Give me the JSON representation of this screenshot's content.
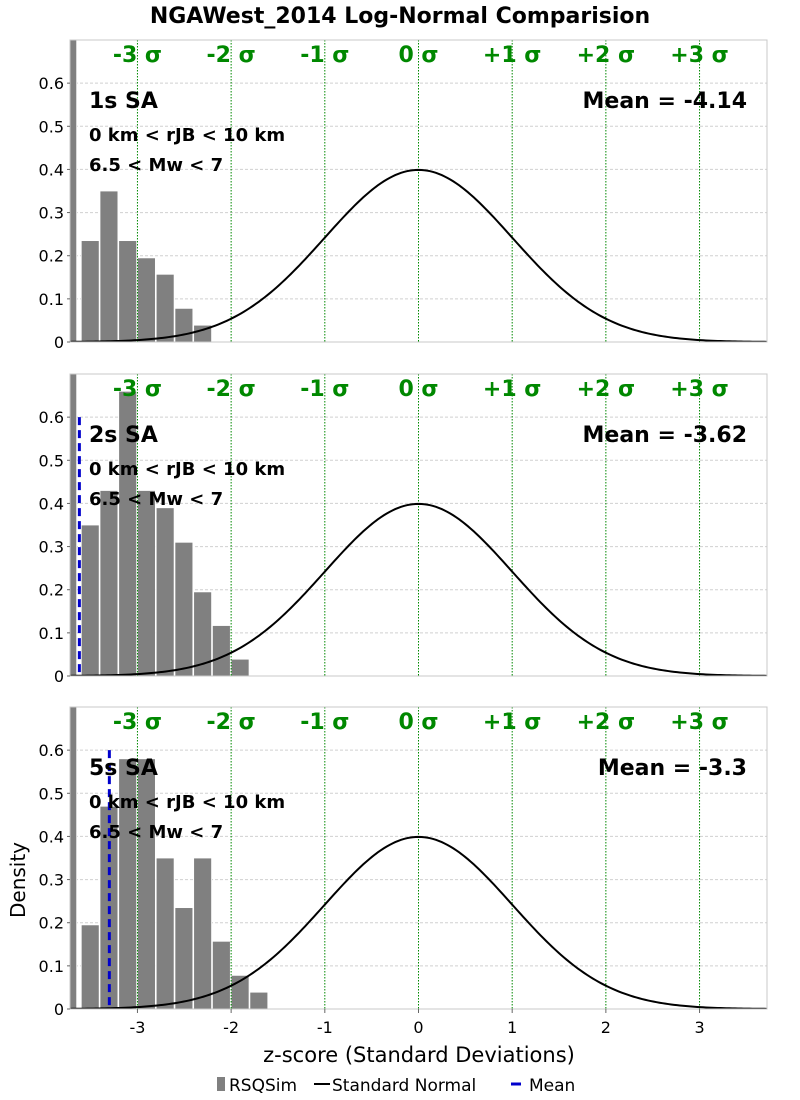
{
  "title": "NGAWest_2014 Log-Normal Comparision",
  "xlabel": "z-score (Standard Deviations)",
  "ylabel": "Density",
  "colors": {
    "bars": "#808080",
    "curve": "#000000",
    "mean": "#0000cc",
    "sigma": "#008800",
    "grid": "#d0d0d0",
    "frame": "#c8c8c8"
  },
  "legend": [
    {
      "label": "RSQSim",
      "kind": "bar"
    },
    {
      "label": "Standard Normal",
      "kind": "line"
    },
    {
      "label": "Mean",
      "kind": "dash"
    }
  ],
  "chart_data": {
    "type": "bar",
    "xlim": [
      -3.72,
      3.72
    ],
    "ylim": [
      0,
      0.7
    ],
    "xticks": [
      -3,
      -2,
      -1,
      0,
      1,
      2,
      3
    ],
    "xtick_labels": [
      "-3",
      "-2",
      "-1",
      "0",
      "1",
      "2",
      "3"
    ],
    "yticks": [
      0,
      0.1,
      0.2,
      0.3,
      0.4,
      0.5,
      0.6
    ],
    "ytick_labels": [
      "0",
      "0.1",
      "0.2",
      "0.3",
      "0.4",
      "0.5",
      "0.6"
    ],
    "sigma_lines": [
      -3,
      -2,
      -1,
      0,
      1,
      2,
      3
    ],
    "sigma_labels": [
      "-3 σ",
      "-2 σ",
      "-1 σ",
      "0 σ",
      "+1 σ",
      "+2 σ",
      "+3 σ"
    ],
    "bin_width": 0.2,
    "panels": [
      {
        "label": "1s SA",
        "range_text": "0 km < rJB < 10 km",
        "mag_text": "6.5 < Mw < 7",
        "mean_text": "Mean = -4.14",
        "mean": -4.14,
        "bins": [
          {
            "left": -3.72,
            "right": -3.64,
            "value": 0.7
          },
          {
            "left": -3.6,
            "right": -3.4,
            "value": 0.235
          },
          {
            "left": -3.4,
            "right": -3.2,
            "value": 0.35
          },
          {
            "left": -3.2,
            "right": -3.0,
            "value": 0.235
          },
          {
            "left": -3.0,
            "right": -2.8,
            "value": 0.195
          },
          {
            "left": -2.8,
            "right": -2.6,
            "value": 0.157
          },
          {
            "left": -2.6,
            "right": -2.4,
            "value": 0.078
          },
          {
            "left": -2.4,
            "right": -2.2,
            "value": 0.039
          }
        ]
      },
      {
        "label": "2s SA",
        "range_text": "0 km < rJB < 10 km",
        "mag_text": "6.5 < Mw < 7",
        "mean_text": "Mean = -3.62",
        "mean": -3.62,
        "bins": [
          {
            "left": -3.72,
            "right": -3.64,
            "value": 0.7
          },
          {
            "left": -3.6,
            "right": -3.4,
            "value": 0.35
          },
          {
            "left": -3.4,
            "right": -3.2,
            "value": 0.43
          },
          {
            "left": -3.2,
            "right": -3.0,
            "value": 0.66
          },
          {
            "left": -3.0,
            "right": -2.8,
            "value": 0.43
          },
          {
            "left": -2.8,
            "right": -2.6,
            "value": 0.39
          },
          {
            "left": -2.6,
            "right": -2.4,
            "value": 0.31
          },
          {
            "left": -2.4,
            "right": -2.2,
            "value": 0.195
          },
          {
            "left": -2.2,
            "right": -2.0,
            "value": 0.117
          },
          {
            "left": -2.0,
            "right": -1.8,
            "value": 0.039
          }
        ]
      },
      {
        "label": "5s SA",
        "range_text": "0 km < rJB < 10 km",
        "mag_text": "6.5 < Mw < 7",
        "mean_text": "Mean = -3.3",
        "mean": -3.3,
        "bins": [
          {
            "left": -3.72,
            "right": -3.64,
            "value": 0.7
          },
          {
            "left": -3.6,
            "right": -3.4,
            "value": 0.195
          },
          {
            "left": -3.4,
            "right": -3.2,
            "value": 0.47
          },
          {
            "left": -3.2,
            "right": -3.0,
            "value": 0.58
          },
          {
            "left": -3.0,
            "right": -2.8,
            "value": 0.58
          },
          {
            "left": -2.8,
            "right": -2.6,
            "value": 0.35
          },
          {
            "left": -2.6,
            "right": -2.4,
            "value": 0.235
          },
          {
            "left": -2.4,
            "right": -2.2,
            "value": 0.35
          },
          {
            "left": -2.2,
            "right": -2.0,
            "value": 0.157
          },
          {
            "left": -2.0,
            "right": -1.8,
            "value": 0.078
          },
          {
            "left": -1.8,
            "right": -1.6,
            "value": 0.039
          }
        ]
      }
    ]
  }
}
